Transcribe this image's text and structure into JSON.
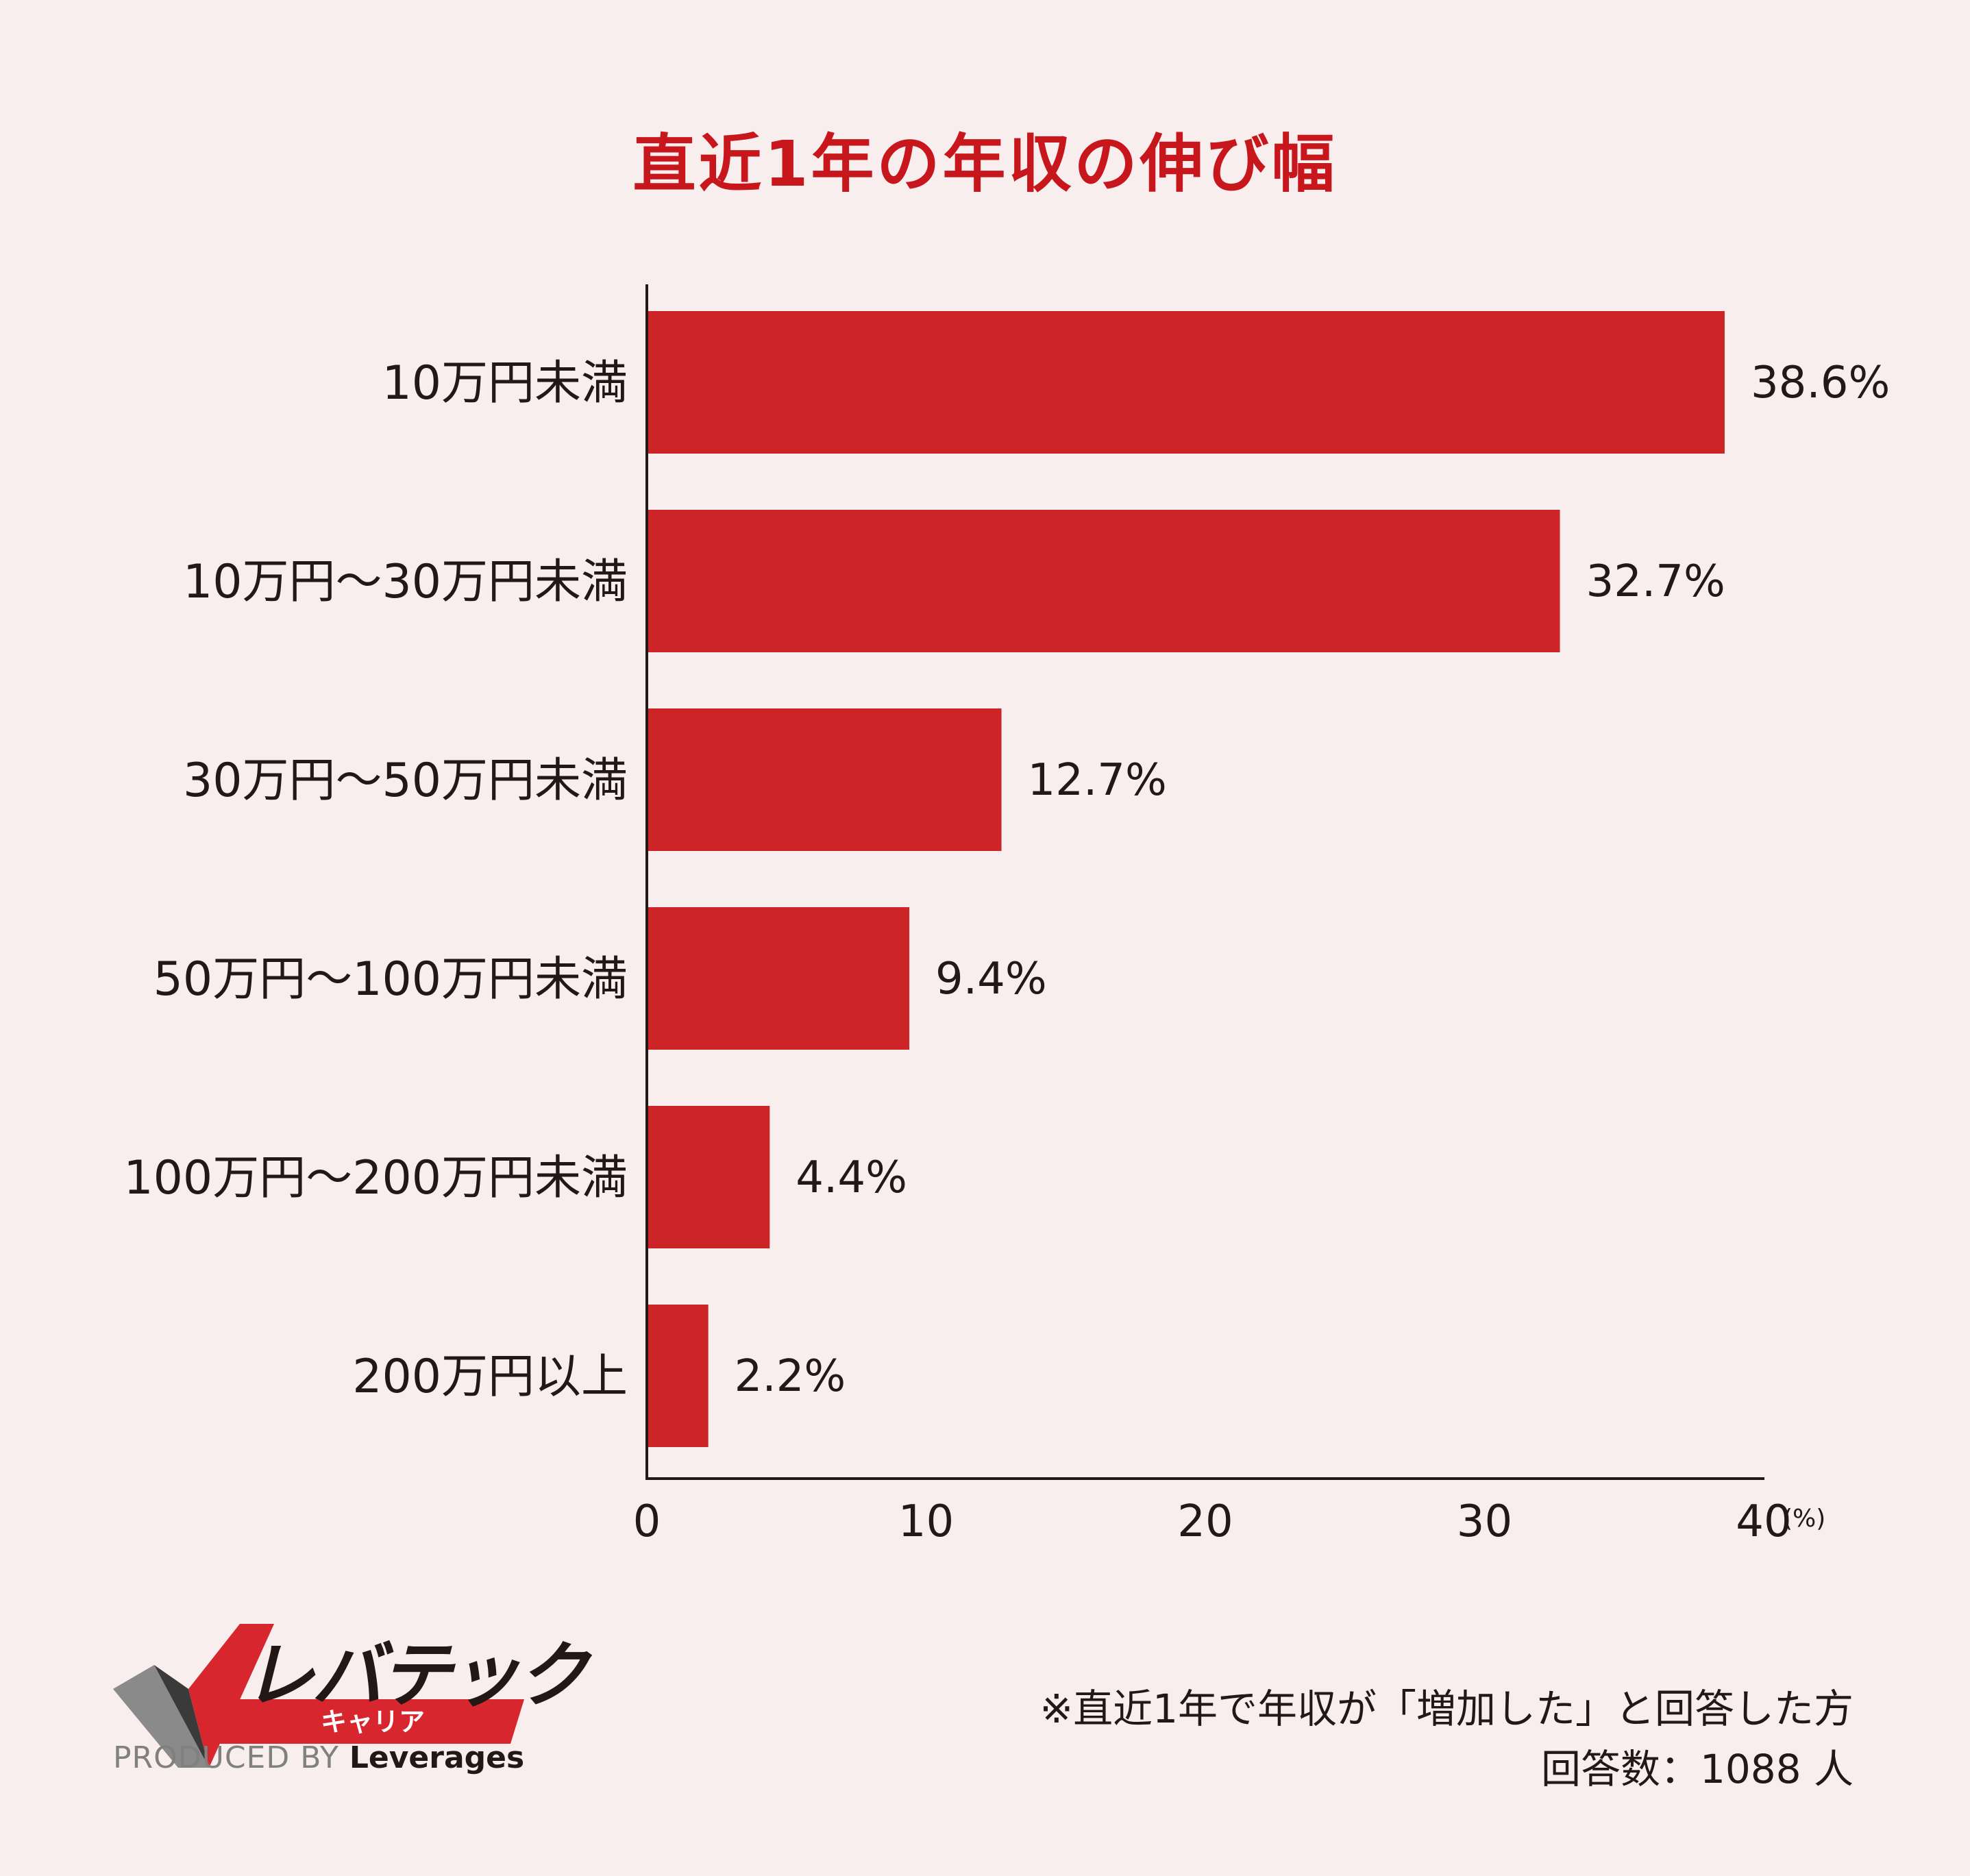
{
  "chart_data": {
    "type": "bar",
    "orientation": "horizontal",
    "title": "直近1年の年収の伸び幅",
    "categories": [
      "10万円未満",
      "10万円〜30万円未満",
      "30万円〜50万円未満",
      "50万円〜100万円未満",
      "100万円〜200万円未満",
      "200万円以上"
    ],
    "values": [
      38.6,
      32.7,
      12.7,
      9.4,
      4.4,
      2.2
    ],
    "value_labels": [
      "38.6%",
      "32.7%",
      "12.7%",
      "9.4%",
      "4.4%",
      "2.2%"
    ],
    "xlim": [
      0,
      40
    ],
    "xticks": [
      0,
      10,
      20,
      30,
      40
    ],
    "xunit": "(%)",
    "bar_color": "#cc2427",
    "grid": false,
    "legend": false
  },
  "logo": {
    "brand": "レバテック",
    "sub": "キャリア",
    "producer_prefix": "PRODUCED BY",
    "producer_name": "Leverages",
    "accent": "#d7262e"
  },
  "footnote": {
    "line1": "※直近1年で年収が「増加した」と回答した方",
    "line2": "回答数：1088 人"
  }
}
